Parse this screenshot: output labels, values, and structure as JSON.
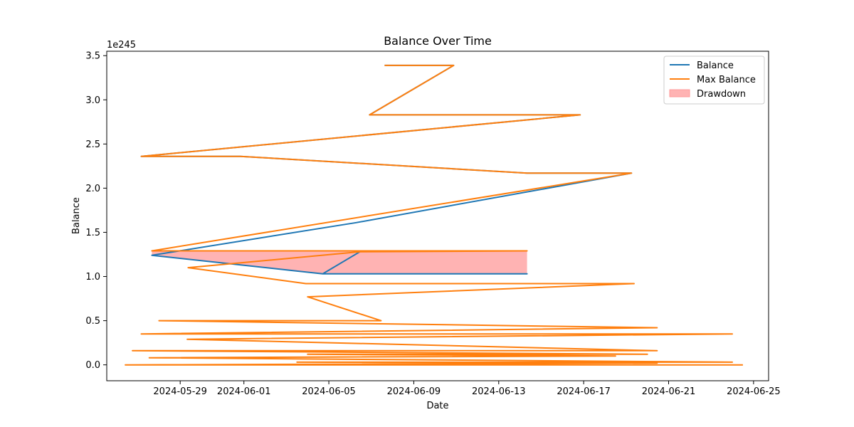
{
  "chart_data": {
    "type": "line",
    "title": "Balance Over Time",
    "xlabel": "Date",
    "ylabel": "Balance",
    "y_offset_label": "1e245",
    "y_scale_exponent": 245,
    "xlim": [
      "2024-05-25T13:00",
      "2024-06-25T17:00"
    ],
    "ylim": [
      -0.18,
      3.55
    ],
    "x_ticks": [
      "2024-05-29",
      "2024-06-01",
      "2024-06-05",
      "2024-06-09",
      "2024-06-13",
      "2024-06-17",
      "2024-06-21",
      "2024-06-25"
    ],
    "y_ticks": [
      0.0,
      0.5,
      1.0,
      1.5,
      2.0,
      2.5,
      3.0,
      3.5
    ],
    "y_tick_labels": [
      "0.0",
      "0.5",
      "1.0",
      "1.5",
      "2.0",
      "2.5",
      "3.0",
      "3.5"
    ],
    "grid": false,
    "legend_position": "top-right",
    "colors": {
      "balance": "#1f77b4",
      "max_balance": "#ff7f0e",
      "drawdown": "#ff9999"
    },
    "legend": [
      "Balance",
      "Max Balance",
      "Drawdown"
    ],
    "series": [
      {
        "name": "Balance",
        "points": [
          [
            "2024-06-06T11:00",
            1.28
          ],
          [
            "2024-06-04T17:00",
            1.03
          ],
          [
            "2024-06-14T08:00",
            1.03
          ],
          [
            "2024-06-04T17:00",
            1.03
          ],
          [
            "2024-05-27T16:00",
            1.24
          ],
          [
            "2024-06-06T07:00",
            1.61
          ],
          [
            "2024-06-19T06:00",
            2.17
          ],
          [
            "2024-06-14T08:00",
            2.17
          ],
          [
            "2024-05-31T20:00",
            2.36
          ],
          [
            "2024-05-27T04:00",
            2.36
          ],
          [
            "2024-06-16T20:00",
            2.83
          ],
          [
            "2024-06-06T22:00",
            2.83
          ],
          [
            "2024-06-10T21:00",
            3.39
          ],
          [
            "2024-06-07T15:00",
            3.39
          ]
        ]
      },
      {
        "name": "Max Balance",
        "points": [
          [
            "2024-06-07T15:00",
            3.39
          ],
          [
            "2024-06-10T21:00",
            3.39
          ],
          [
            "2024-06-06T22:00",
            2.83
          ],
          [
            "2024-06-16T20:00",
            2.83
          ],
          [
            "2024-05-27T04:00",
            2.36
          ],
          [
            "2024-05-31T20:00",
            2.36
          ],
          [
            "2024-06-14T08:00",
            2.17
          ],
          [
            "2024-06-19T06:00",
            2.17
          ],
          [
            "2024-05-27T16:00",
            1.29
          ],
          [
            "2024-06-14T08:00",
            1.29
          ],
          [
            "2024-06-06T11:00",
            1.28
          ],
          [
            "2024-05-29T09:00",
            1.1
          ],
          [
            "2024-06-03T22:00",
            0.92
          ],
          [
            "2024-06-19T09:00",
            0.92
          ],
          [
            "2024-06-04T00:00",
            0.77
          ],
          [
            "2024-06-07T11:00",
            0.5
          ],
          [
            "2024-05-28T00:00",
            0.5
          ],
          [
            "2024-06-20T11:00",
            0.42
          ],
          [
            "2024-05-27T04:00",
            0.35
          ],
          [
            "2024-06-24T00:00",
            0.35
          ],
          [
            "2024-05-29T08:00",
            0.29
          ],
          [
            "2024-06-20T11:00",
            0.16
          ],
          [
            "2024-05-26T18:00",
            0.16
          ],
          [
            "2024-06-20T00:00",
            0.12
          ],
          [
            "2024-06-04T00:00",
            0.12
          ],
          [
            "2024-06-18T12:00",
            0.1
          ],
          [
            "2024-05-27T13:00",
            0.08
          ],
          [
            "2024-06-24T00:00",
            0.03
          ],
          [
            "2024-06-03T12:00",
            0.03
          ],
          [
            "2024-06-20T11:00",
            0.02
          ],
          [
            "2024-05-26T10:00",
            0.0
          ],
          [
            "2024-06-24T12:00",
            0.0
          ]
        ]
      }
    ],
    "drawdown_regions": [
      [
        [
          "2024-05-27T16:00",
          1.29
        ],
        [
          "2024-06-14T08:00",
          1.29
        ],
        [
          "2024-06-14T08:00",
          1.03
        ],
        [
          "2024-06-04T17:00",
          1.03
        ],
        [
          "2024-05-27T16:00",
          1.24
        ]
      ]
    ]
  }
}
